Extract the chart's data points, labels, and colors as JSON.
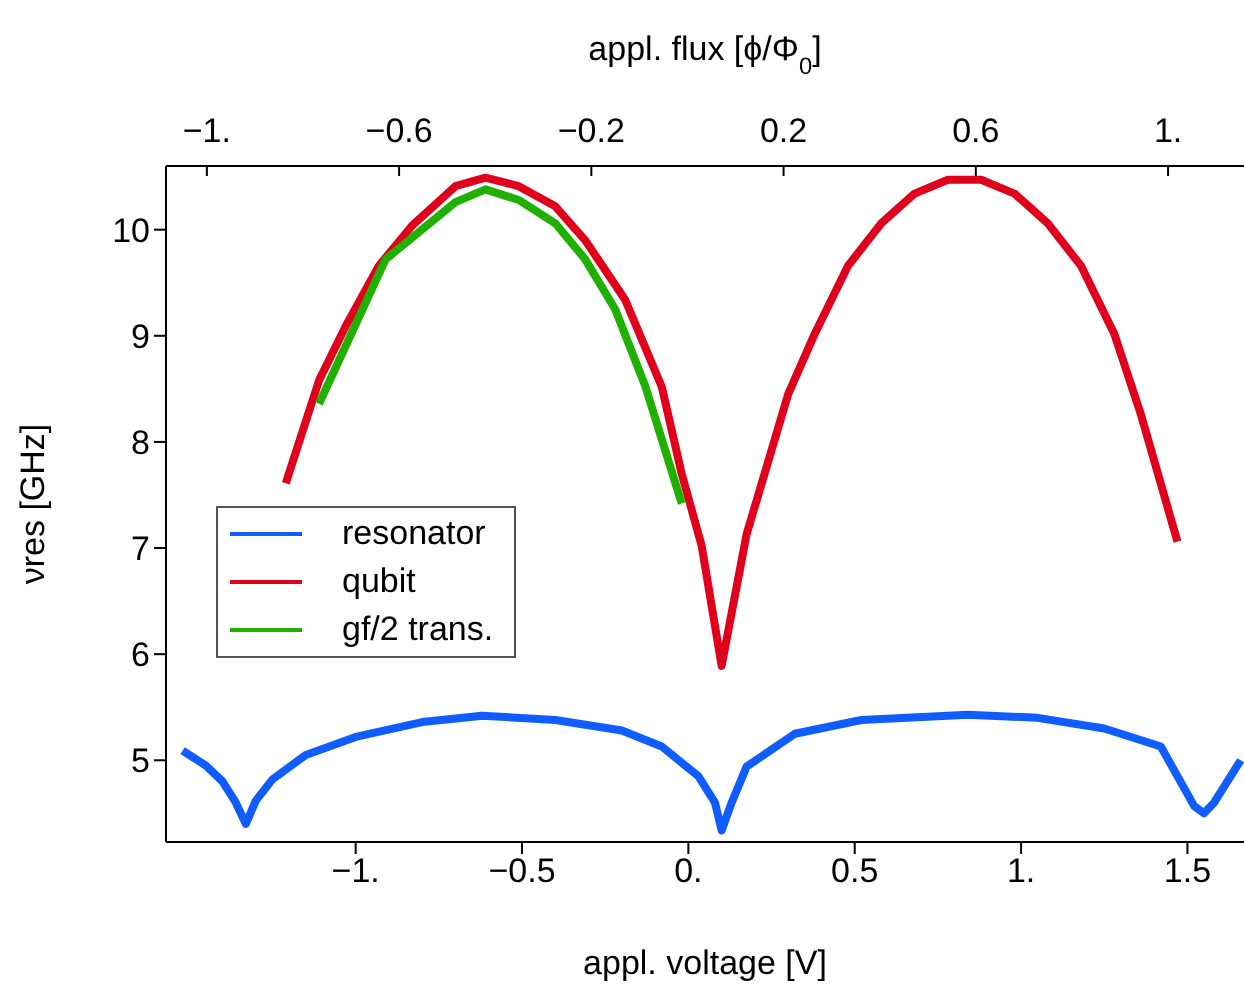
{
  "chart_data": {
    "type": "line",
    "xlabel": "appl. voltage [V]",
    "ylabel": "νres [GHz]",
    "x2label": "appl. flux [ϕ/Φ$_{0}$]",
    "xlim": [
      -1.57,
      1.67
    ],
    "xticks": [
      {
        "value": -1,
        "label": "−1."
      },
      {
        "value": -0.5,
        "label": "−0.5"
      },
      {
        "value": 0,
        "label": "0."
      },
      {
        "value": 0.5,
        "label": "0.5"
      },
      {
        "value": 1,
        "label": "1."
      },
      {
        "value": 1.5,
        "label": "1.5"
      }
    ],
    "x2lim": [
      -1.085,
      1.158
    ],
    "x2ticks": [
      {
        "value": -1,
        "label": "−1."
      },
      {
        "value": -0.6,
        "label": "−0.6"
      },
      {
        "value": -0.2,
        "label": "−0.2"
      },
      {
        "value": 0.2,
        "label": "0.2"
      },
      {
        "value": 0.6,
        "label": "0.6"
      },
      {
        "value": 1,
        "label": "1."
      }
    ],
    "ylim": [
      4.23,
      10.6
    ],
    "yticks": [
      5,
      6,
      7,
      8,
      9,
      10
    ],
    "grid": false,
    "legend": "left",
    "marker": "none",
    "line_style": "solid",
    "series": [
      {
        "name": "resonator",
        "color": "#0f5cff",
        "x": [
          -1.52,
          -1.45,
          -1.4,
          -1.36,
          -1.33,
          -1.3,
          -1.25,
          -1.15,
          -1.0,
          -0.8,
          -0.62,
          -0.4,
          -0.2,
          -0.08,
          0.03,
          0.08,
          0.1,
          0.13,
          0.175,
          0.32,
          0.52,
          0.84,
          1.05,
          1.25,
          1.42,
          1.52,
          1.55,
          1.58,
          1.66
        ],
        "values": [
          5.09,
          4.95,
          4.8,
          4.6,
          4.4,
          4.62,
          4.82,
          5.05,
          5.22,
          5.36,
          5.42,
          5.38,
          5.28,
          5.13,
          4.85,
          4.6,
          4.34,
          4.6,
          4.94,
          5.25,
          5.38,
          5.43,
          5.4,
          5.3,
          5.13,
          4.57,
          4.5,
          4.6,
          5.0
        ]
      },
      {
        "name": "qubit",
        "color": "#e0001b",
        "x": [
          -1.21,
          -1.11,
          -1.03,
          -0.93,
          -0.83,
          -0.7,
          -0.61,
          -0.51,
          -0.4,
          -0.31,
          -0.19,
          -0.08,
          -0.02,
          0.04,
          0.1,
          0.175,
          0.3,
          0.38,
          0.48,
          0.58,
          0.68,
          0.78,
          0.88,
          0.98,
          1.08,
          1.18,
          1.28,
          1.36,
          1.47
        ],
        "values": [
          7.61,
          8.58,
          9.09,
          9.66,
          10.04,
          10.41,
          10.49,
          10.41,
          10.22,
          9.9,
          9.34,
          8.52,
          7.7,
          7.02,
          5.89,
          7.13,
          8.45,
          9.02,
          9.66,
          10.06,
          10.34,
          10.47,
          10.47,
          10.34,
          10.06,
          9.66,
          9.02,
          8.26,
          7.06
        ]
      },
      {
        "name": "gf/2 trans.",
        "color": "#1fb000",
        "x": [
          -1.11,
          -0.91,
          -0.7,
          -0.61,
          -0.51,
          -0.4,
          -0.31,
          -0.22,
          -0.13,
          -0.02
        ],
        "values": [
          8.36,
          9.72,
          10.26,
          10.38,
          10.28,
          10.06,
          9.72,
          9.25,
          8.53,
          7.42
        ]
      }
    ]
  }
}
